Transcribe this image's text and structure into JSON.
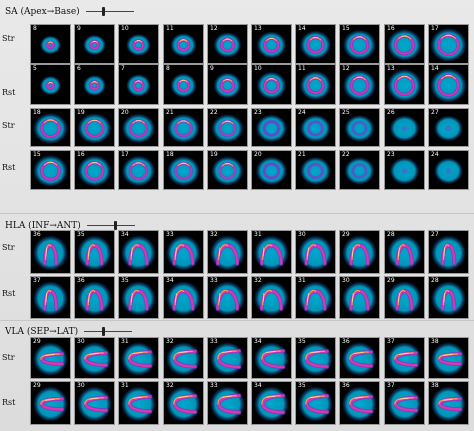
{
  "palette": {
    "bg_blue": "#00b0d8",
    "mid_blue": "#1c4fb8",
    "purple": "#8a2fc8",
    "magenta": "#d93aa8",
    "hot": "#ffb04a",
    "white": "#fff3c8"
  },
  "sections": [
    {
      "title": "SA (Apex→Base)",
      "slider_value": 0.35,
      "view": "sa",
      "rows": [
        {
          "label": "Str",
          "slices": [
            "8",
            "9",
            "10",
            "11",
            "12",
            "13",
            "14",
            "15",
            "16",
            "17"
          ]
        },
        {
          "label": "Rst",
          "slices": [
            "5",
            "6",
            "7",
            "8",
            "9",
            "10",
            "11",
            "12",
            "13",
            "14"
          ]
        },
        {
          "label": "Str",
          "slices": [
            "18",
            "19",
            "20",
            "21",
            "22",
            "23",
            "24",
            "25",
            "26",
            "27"
          ]
        },
        {
          "label": "Rst",
          "slices": [
            "15",
            "16",
            "17",
            "18",
            "19",
            "20",
            "21",
            "22",
            "23",
            "24"
          ]
        }
      ]
    },
    {
      "title": "HLA (INF→ANT)",
      "slider_value": 0.6,
      "view": "hla",
      "rows": [
        {
          "label": "Str",
          "slices": [
            "36",
            "35",
            "34",
            "33",
            "32",
            "31",
            "30",
            "29",
            "28",
            "27"
          ]
        },
        {
          "label": "Rst",
          "slices": [
            "37",
            "36",
            "35",
            "34",
            "33",
            "32",
            "31",
            "30",
            "29",
            "28"
          ]
        }
      ]
    },
    {
      "title": "VLA (SEP→LAT)",
      "slider_value": 0.4,
      "view": "vla",
      "rows": [
        {
          "label": "Str",
          "slices": [
            "29",
            "30",
            "31",
            "32",
            "33",
            "34",
            "35",
            "36",
            "37",
            "38"
          ]
        },
        {
          "label": "Rst",
          "slices": [
            "29",
            "30",
            "31",
            "32",
            "33",
            "34",
            "35",
            "36",
            "37",
            "38"
          ]
        }
      ]
    }
  ]
}
